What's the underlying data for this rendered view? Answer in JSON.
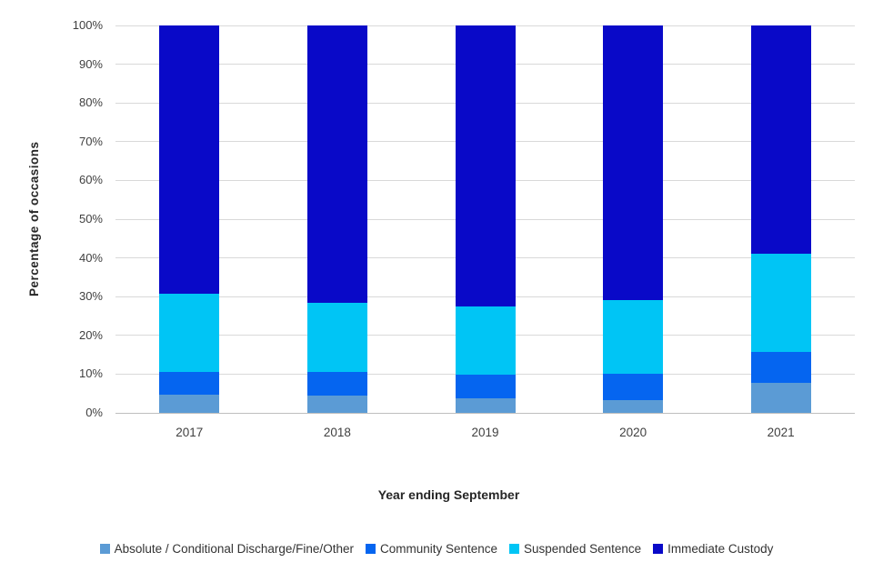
{
  "chart_data": {
    "type": "bar",
    "subtype": "stacked-100-percent",
    "title": "",
    "xlabel": "Year ending September",
    "ylabel": "Percentage of occasions",
    "categories": [
      "2017",
      "2018",
      "2019",
      "2020",
      "2021"
    ],
    "series": [
      {
        "name": "Absolute / Conditional Discharge/Fine/Other",
        "color": "#5B9BD5",
        "values": [
          4.7,
          4.5,
          3.8,
          3.3,
          7.7
        ]
      },
      {
        "name": "Community Sentence",
        "color": "#0565F0",
        "values": [
          5.8,
          6.1,
          6.1,
          6.8,
          8.0
        ]
      },
      {
        "name": "Suspended Sentence",
        "color": "#00C5F5",
        "values": [
          20.3,
          17.9,
          17.6,
          19.0,
          25.3
        ]
      },
      {
        "name": "Immediate Custody",
        "color": "#0909C8",
        "values": [
          69.2,
          71.5,
          72.5,
          70.9,
          59.0
        ]
      }
    ],
    "ylim": [
      0,
      100
    ],
    "ytick_labels": [
      "0%",
      "10%",
      "20%",
      "30%",
      "40%",
      "50%",
      "60%",
      "70%",
      "80%",
      "90%",
      "100%"
    ],
    "grid": "horizontal",
    "gridline_color": "#D9D9D9",
    "tick_text_color": "#404040",
    "legend_position": "bottom"
  }
}
